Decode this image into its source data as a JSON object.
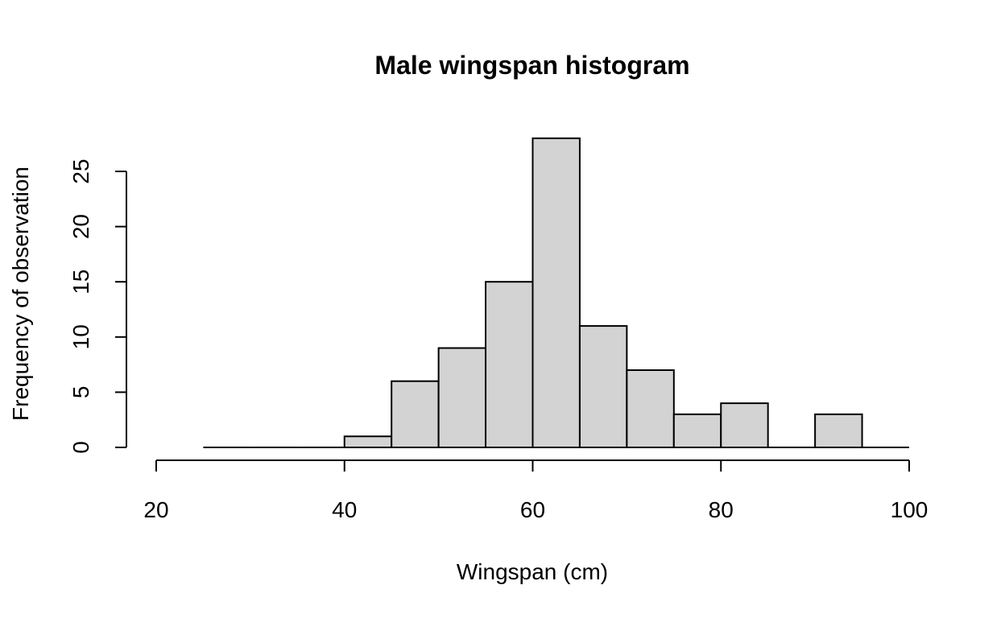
{
  "chart_data": {
    "type": "bar",
    "title": "Male wingspan histogram",
    "xlabel": "Wingspan (cm)",
    "ylabel": "Frequency of observation",
    "xlim": [
      20,
      100
    ],
    "ylim": [
      0,
      28
    ],
    "x_ticks": [
      "20",
      "40",
      "60",
      "80",
      "100"
    ],
    "y_ticks": [
      "0",
      "5",
      "10",
      "15",
      "20",
      "25"
    ],
    "bin_edges": [
      25,
      30,
      35,
      40,
      45,
      50,
      55,
      60,
      65,
      70,
      75,
      80,
      85,
      90,
      95,
      100
    ],
    "counts": [
      0,
      0,
      0,
      1,
      6,
      9,
      15,
      28,
      11,
      7,
      3,
      4,
      0,
      3,
      0
    ],
    "bar_color": "#d3d3d3",
    "grid": false
  }
}
